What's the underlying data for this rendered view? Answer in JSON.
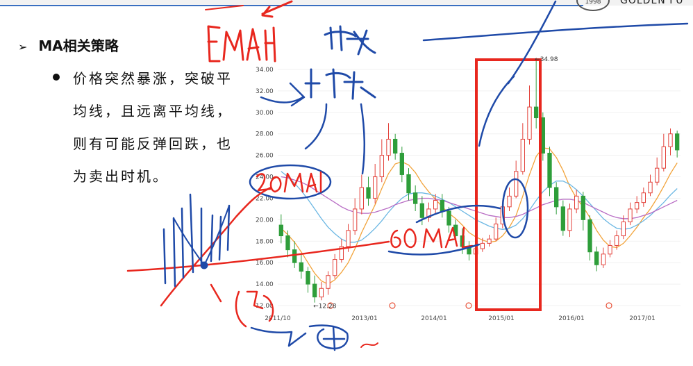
{
  "header": {
    "logo_text": "GOLDEN FU",
    "logo_year": "1998"
  },
  "slide": {
    "heading_marker": "➢",
    "heading": "MA相关策略",
    "bullet": "价格突然暴涨，突破平均线，且远离平均线，则有可能反弹回跌，也为卖出时机。"
  },
  "chart_data": {
    "type": "candlestick",
    "title": "",
    "xlabel": "",
    "ylabel": "",
    "ylim": [
      12,
      36
    ],
    "y_ticks": [
      "12.00",
      "14.00",
      "16.00",
      "18.00",
      "20.00",
      "22.00",
      "24.00",
      "26.00",
      "28.00",
      "30.00",
      "32.00",
      "34.00"
    ],
    "x_ticks": [
      "2011/10",
      "2013/01",
      "2014/01",
      "2015/01",
      "2016/01",
      "2017/01"
    ],
    "annotations": {
      "high_label": "34.98",
      "low_label": "12.28",
      "high_value": 34.98,
      "low_value": 12.28
    },
    "colors": {
      "up": "#e3413a",
      "down": "#2e9e3a",
      "ma_fast": "#f2a33a",
      "ma_mid": "#6bb7e3",
      "ma_slow": "#b86cc4",
      "highlight": "#e8271e"
    },
    "candles": [
      [
        19.5,
        18.5,
        20.5,
        17.8
      ],
      [
        18.5,
        17.2,
        19.0,
        16.5
      ],
      [
        17.2,
        16.0,
        18.0,
        15.5
      ],
      [
        16.0,
        15.2,
        16.8,
        14.5
      ],
      [
        15.2,
        14.0,
        15.6,
        13.2
      ],
      [
        14.0,
        12.8,
        14.8,
        12.28
      ],
      [
        12.8,
        13.6,
        14.2,
        12.5
      ],
      [
        13.6,
        14.8,
        15.2,
        13.0
      ],
      [
        14.8,
        16.3,
        16.8,
        14.5
      ],
      [
        16.3,
        17.5,
        18.2,
        16.0
      ],
      [
        17.5,
        19.0,
        19.6,
        17.0
      ],
      [
        19.0,
        21.0,
        22.0,
        18.6
      ],
      [
        21.0,
        23.0,
        24.2,
        20.5
      ],
      [
        23.0,
        22.0,
        24.0,
        21.3
      ],
      [
        22.0,
        24.0,
        25.2,
        21.5
      ],
      [
        24.0,
        26.0,
        27.5,
        23.5
      ],
      [
        26.0,
        27.5,
        29.0,
        25.5
      ],
      [
        27.5,
        26.2,
        28.0,
        25.6
      ],
      [
        26.2,
        24.2,
        26.8,
        23.5
      ],
      [
        24.2,
        22.5,
        24.8,
        21.8
      ],
      [
        22.5,
        21.5,
        23.2,
        20.8
      ],
      [
        21.5,
        20.2,
        22.2,
        19.5
      ],
      [
        20.2,
        21.0,
        21.6,
        19.8
      ],
      [
        21.0,
        21.8,
        22.4,
        20.5
      ],
      [
        21.8,
        20.8,
        22.4,
        20.2
      ],
      [
        20.8,
        19.5,
        21.2,
        18.8
      ],
      [
        19.5,
        18.5,
        20.0,
        17.8
      ],
      [
        18.5,
        17.5,
        19.2,
        16.8
      ],
      [
        17.5,
        16.8,
        18.0,
        16.2
      ],
      [
        16.8,
        17.3,
        17.9,
        16.5
      ],
      [
        17.3,
        17.8,
        18.3,
        17.0
      ],
      [
        17.8,
        18.2,
        18.6,
        17.5
      ],
      [
        18.2,
        19.6,
        20.2,
        18.0
      ],
      [
        19.6,
        21.2,
        21.8,
        19.2
      ],
      [
        21.2,
        22.2,
        23.0,
        20.8
      ],
      [
        22.2,
        24.5,
        25.5,
        22.0
      ],
      [
        24.5,
        27.5,
        29.0,
        24.2
      ],
      [
        27.5,
        30.5,
        32.5,
        27.0
      ],
      [
        30.5,
        29.5,
        34.98,
        28.5
      ],
      [
        29.5,
        26.2,
        30.0,
        25.5
      ],
      [
        26.2,
        23.0,
        26.8,
        22.2
      ],
      [
        23.0,
        21.2,
        23.5,
        20.5
      ],
      [
        21.2,
        19.0,
        21.8,
        18.5
      ],
      [
        19.0,
        21.0,
        21.5,
        18.4
      ],
      [
        21.0,
        22.2,
        22.8,
        20.6
      ],
      [
        22.2,
        20.0,
        22.6,
        19.0
      ],
      [
        20.0,
        17.0,
        20.4,
        16.2
      ],
      [
        17.0,
        15.8,
        17.5,
        15.2
      ],
      [
        15.8,
        16.8,
        17.4,
        15.5
      ],
      [
        16.8,
        17.6,
        18.1,
        16.5
      ],
      [
        17.6,
        18.5,
        19.0,
        17.2
      ],
      [
        18.5,
        19.8,
        20.4,
        18.2
      ],
      [
        19.8,
        21.0,
        21.6,
        19.5
      ],
      [
        21.0,
        21.6,
        22.2,
        20.6
      ],
      [
        21.6,
        22.5,
        23.0,
        21.2
      ],
      [
        22.5,
        23.5,
        24.2,
        22.2
      ],
      [
        23.5,
        24.8,
        25.8,
        23.2
      ],
      [
        24.8,
        26.8,
        28.0,
        24.5
      ],
      [
        26.8,
        28.0,
        28.5,
        26.0
      ],
      [
        28.0,
        26.5,
        28.3,
        25.8
      ]
    ],
    "ma_fast": [
      19.2,
      18.6,
      17.9,
      17.0,
      16.0,
      15.0,
      14.3,
      14.0,
      14.4,
      15.1,
      16.0,
      17.3,
      18.8,
      20.1,
      21.4,
      22.9,
      24.3,
      25.2,
      25.4,
      25.1,
      24.4,
      23.4,
      22.6,
      21.9,
      21.2,
      20.6,
      20.1,
      19.5,
      18.8,
      18.4,
      18.1,
      17.9,
      18.0,
      18.5,
      19.3,
      20.4,
      22.2,
      24.2,
      25.9,
      26.7,
      26.6,
      25.8,
      24.6,
      23.1,
      22.0,
      21.2,
      20.2,
      19.0,
      18.1,
      17.5,
      17.4,
      17.8,
      18.5,
      19.3,
      20.2,
      21.0,
      22.0,
      23.1,
      24.3,
      25.3
    ],
    "ma_mid": [
      24.5,
      24.0,
      23.4,
      22.7,
      21.9,
      21.0,
      20.1,
      19.3,
      18.7,
      18.2,
      17.9,
      17.9,
      18.1,
      18.6,
      19.2,
      19.9,
      20.7,
      21.4,
      22.0,
      22.4,
      22.5,
      22.5,
      22.4,
      22.2,
      21.9,
      21.6,
      21.2,
      20.8,
      20.4,
      20.0,
      19.7,
      19.4,
      19.2,
      19.1,
      19.2,
      19.5,
      20.1,
      20.9,
      21.8,
      22.6,
      23.2,
      23.6,
      23.6,
      23.3,
      22.8,
      22.2,
      21.5,
      20.8,
      20.1,
      19.6,
      19.2,
      19.1,
      19.2,
      19.5,
      19.9,
      20.4,
      21.0,
      21.6,
      22.3,
      22.9
    ],
    "ma_slow": [
      24.0,
      23.9,
      23.7,
      23.5,
      23.2,
      22.8,
      22.4,
      22.0,
      21.6,
      21.2,
      20.9,
      20.7,
      20.6,
      20.6,
      20.7,
      20.9,
      21.1,
      21.4,
      21.6,
      21.8,
      21.9,
      22.0,
      22.0,
      21.9,
      21.8,
      21.6,
      21.4,
      21.2,
      21.0,
      20.8,
      20.6,
      20.4,
      20.3,
      20.2,
      20.2,
      20.3,
      20.5,
      20.8,
      21.1,
      21.4,
      21.6,
      21.8,
      21.9,
      21.9,
      21.8,
      21.6,
      21.3,
      21.0,
      20.7,
      20.4,
      20.2,
      20.1,
      20.1,
      20.2,
      20.4,
      20.6,
      20.9,
      21.2,
      21.5,
      21.8
    ]
  }
}
